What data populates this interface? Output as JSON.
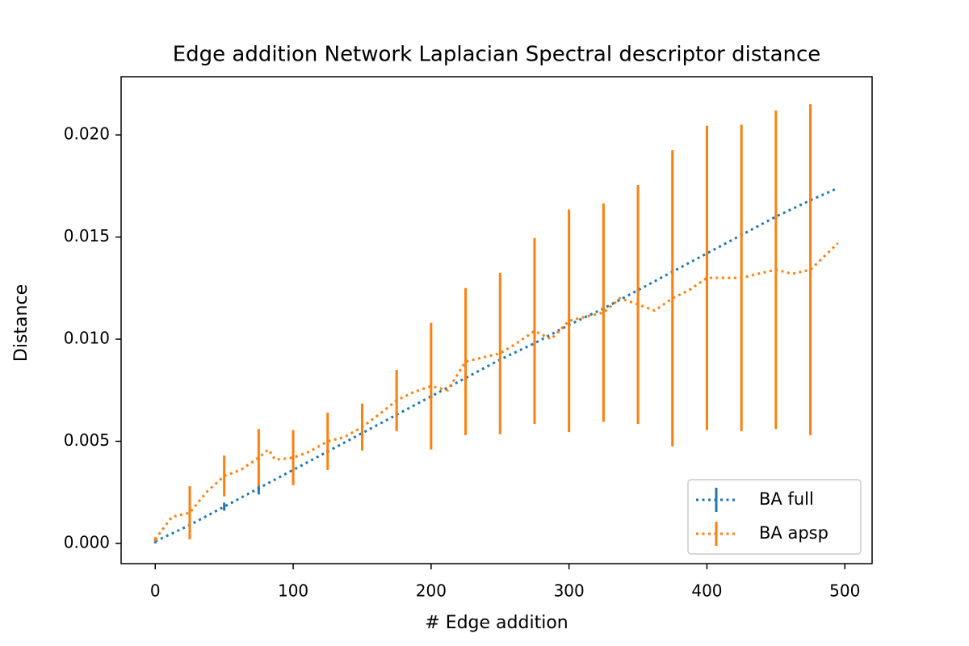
{
  "chart_data": {
    "type": "line",
    "title": "Edge addition Network Laplacian Spectral descriptor distance",
    "xlabel": "# Edge addition",
    "ylabel": "Distance",
    "xlim": [
      -24.75,
      519.75
    ],
    "ylim": [
      -0.00099,
      0.02285
    ],
    "xticks": [
      0,
      100,
      200,
      300,
      400,
      500
    ],
    "yticks": [
      {
        "value": 0,
        "label": "0.000"
      },
      {
        "value": 0.005,
        "label": "0.005"
      },
      {
        "value": 0.01,
        "label": "0.010"
      },
      {
        "value": 0.015,
        "label": "0.015"
      },
      {
        "value": 0.02,
        "label": "0.020"
      }
    ],
    "legend": "lower right",
    "series": [
      {
        "name": "BA full",
        "color": "#1f77b4",
        "x": [
          0,
          25,
          50,
          75,
          100,
          125,
          150,
          175,
          200,
          225,
          250,
          275,
          300,
          325,
          350,
          375,
          400,
          425,
          450,
          475,
          495
        ],
        "values": [
          0.0001,
          0.0009,
          0.0018,
          0.0027,
          0.0036,
          0.0045,
          0.0054,
          0.0063,
          0.0072,
          0.0081,
          0.009,
          0.0098,
          0.0107,
          0.0115,
          0.0124,
          0.0133,
          0.0142,
          0.0151,
          0.016,
          0.0168,
          0.0174
        ],
        "errors": [
          0.0001,
          0.0001,
          0.0002,
          0.0003,
          0.0001,
          0.0001,
          0.0001,
          0.0001,
          0.0001,
          0.0001,
          0.0001,
          0.0001,
          0.0001,
          0.0001,
          0.0001,
          0.0001,
          0.0001,
          0.0001,
          0.0001,
          0.0001,
          null
        ]
      },
      {
        "name": "BA apsp",
        "color": "#ff7f0e",
        "x": [
          0,
          12,
          25,
          37,
          50,
          62,
          75,
          82,
          87,
          100,
          112,
          125,
          137,
          150,
          162,
          175,
          187,
          200,
          212,
          225,
          237,
          250,
          262,
          275,
          287,
          300,
          312,
          325,
          337,
          350,
          362,
          375,
          387,
          400,
          412,
          425,
          437,
          450,
          462,
          475,
          495
        ],
        "values": [
          0.0002,
          0.0013,
          0.0015,
          0.0025,
          0.0033,
          0.0036,
          0.0042,
          0.0046,
          0.0041,
          0.0042,
          0.0045,
          0.005,
          0.0052,
          0.0057,
          0.0063,
          0.007,
          0.0074,
          0.0077,
          0.0075,
          0.0089,
          0.0091,
          0.0093,
          0.0098,
          0.0104,
          0.01,
          0.0109,
          0.0111,
          0.0113,
          0.012,
          0.0117,
          0.0114,
          0.012,
          0.0124,
          0.013,
          0.013,
          0.013,
          0.0132,
          0.0134,
          0.0132,
          0.0134,
          0.0147
        ],
        "errors": [
          0.0001,
          null,
          0.0013,
          null,
          0.001,
          null,
          0.0014,
          null,
          null,
          0.00135,
          null,
          0.0014,
          null,
          0.00115,
          null,
          0.0015,
          null,
          0.0031,
          null,
          0.0036,
          null,
          0.00395,
          null,
          0.00455,
          null,
          0.00545,
          null,
          0.00535,
          null,
          0.00585,
          null,
          0.00725,
          null,
          0.00745,
          null,
          0.0075,
          null,
          0.0078,
          null,
          0.0081,
          null
        ]
      }
    ]
  }
}
